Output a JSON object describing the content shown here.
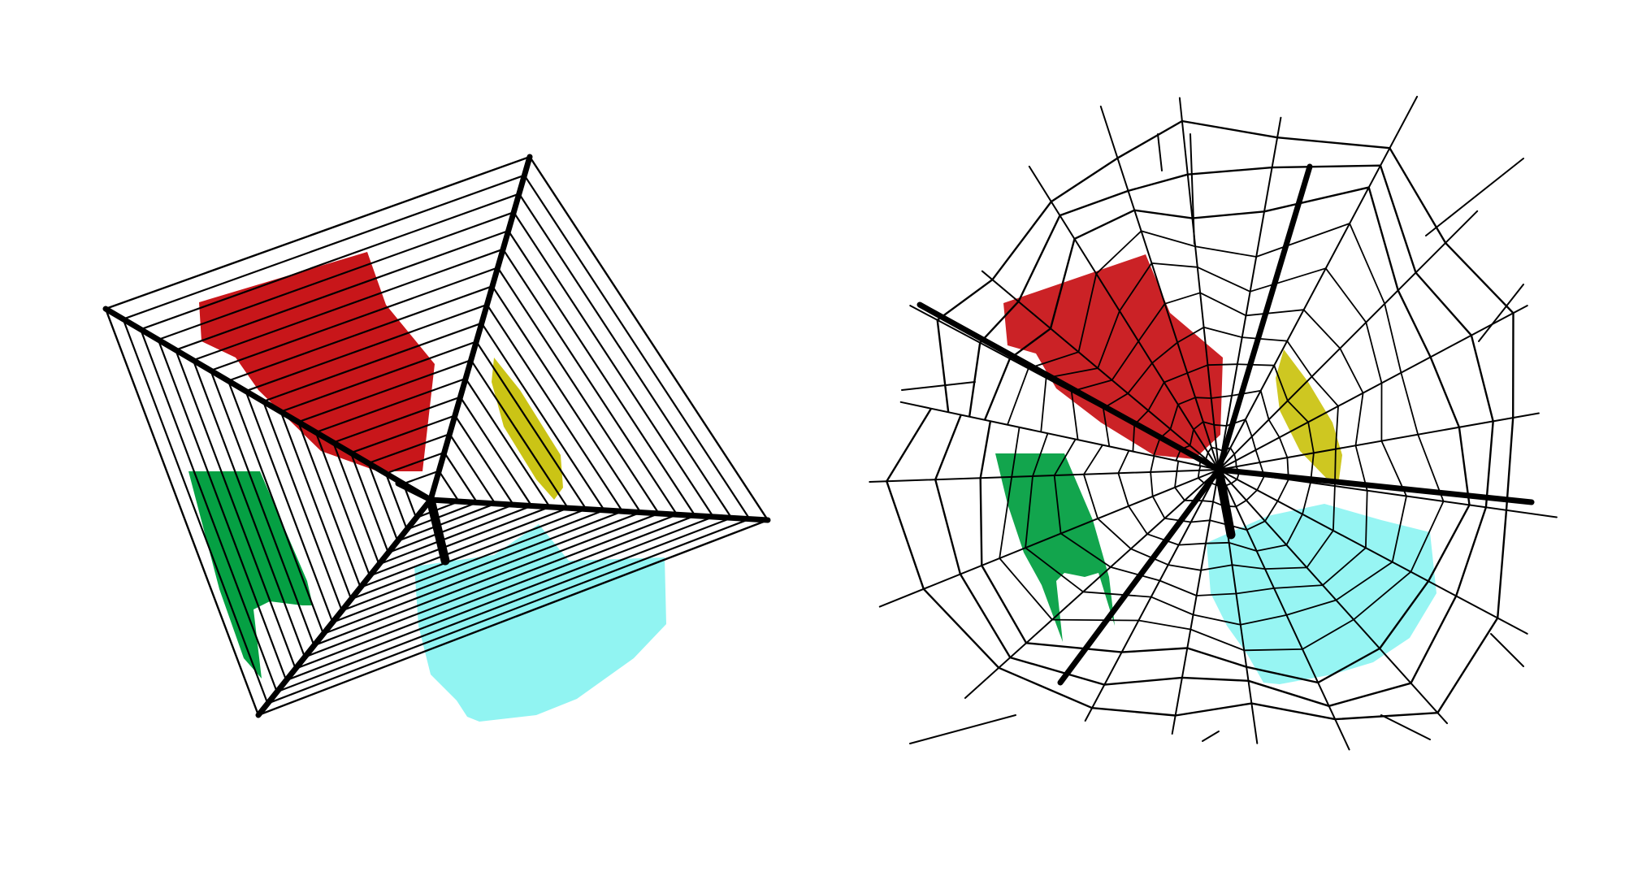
{
  "panels": [
    {
      "id": "left",
      "kind": "geometric-web-line-drawing"
    },
    {
      "id": "right",
      "kind": "natural-spider-web-drawing"
    }
  ],
  "colors": {
    "red": "#c8161a",
    "green": "#05a043",
    "cyan": "#91f4f2",
    "yellow": "#cbc415",
    "line": "#000000",
    "background": "#ffffff"
  },
  "regions": [
    "red-region",
    "green-region",
    "cyan-region",
    "yellow-region"
  ]
}
